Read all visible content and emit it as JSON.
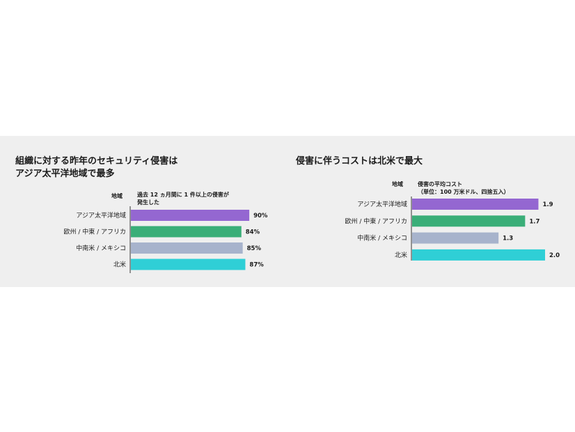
{
  "colors": {
    "purple": "#9467d1",
    "green": "#3aae78",
    "slate": "#a7b3cc",
    "cyan": "#2fcfd6",
    "panel": "#efefef"
  },
  "chart_data": [
    {
      "type": "bar",
      "orientation": "horizontal",
      "title_lines": [
        "組織に対する昨年のセキュリティ侵害は",
        "アジア太平洋地域で最多"
      ],
      "category_header": "地域",
      "value_header_lines": [
        "過去 12 ヵ月間に 1 件以上の侵害が",
        "発生した"
      ],
      "categories": [
        "アジア太平洋地域",
        "欧州 / 中東 / アフリカ",
        "中南米 / メキシコ",
        "北米"
      ],
      "values": [
        90,
        84,
        85,
        87
      ],
      "value_labels": [
        "90%",
        "84%",
        "85%",
        "87%"
      ],
      "unit": "%",
      "bar_colors": [
        "#9467d1",
        "#3aae78",
        "#a7b3cc",
        "#2fcfd6"
      ]
    },
    {
      "type": "bar",
      "orientation": "horizontal",
      "title_lines": [
        "侵害に伴うコストは北米で最大"
      ],
      "category_header": "地域",
      "value_header_lines": [
        "侵害の平均コスト",
        "（単位：100 万米ドル、四捨五入）"
      ],
      "categories": [
        "アジア太平洋地域",
        "欧州 / 中東 / アフリカ",
        "中南米 / メキシコ",
        "北米"
      ],
      "values": [
        1.9,
        1.7,
        1.3,
        2.0
      ],
      "value_labels": [
        "1.9",
        "1.7",
        "1.3",
        "2.0"
      ],
      "bar_colors": [
        "#9467d1",
        "#3aae78",
        "#a7b3cc",
        "#2fcfd6"
      ]
    }
  ]
}
